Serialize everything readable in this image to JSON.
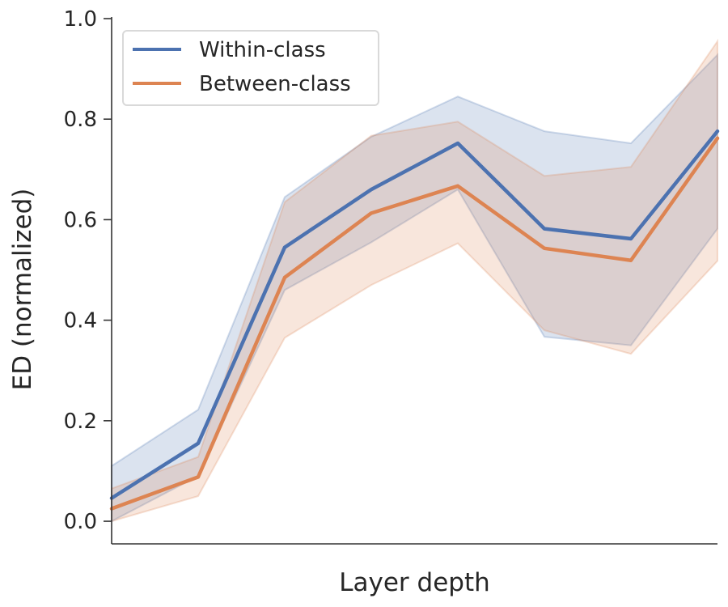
{
  "chart_data": {
    "type": "line",
    "xlabel": "Layer depth",
    "ylabel": "ED (normalized)",
    "x": [
      0,
      1,
      2,
      3,
      4,
      5,
      6,
      7
    ],
    "xlim": [
      0,
      7
    ],
    "ylim": [
      -0.045,
      1.0
    ],
    "yticks": [
      0.0,
      0.2,
      0.4,
      0.6,
      0.8,
      1.0
    ],
    "ytick_labels": [
      "0.0",
      "0.2",
      "0.4",
      "0.6",
      "0.8",
      "1.0"
    ],
    "grid": false,
    "legend_position": "top-left",
    "series": [
      {
        "name": "Within-class",
        "color": "#4c72b0",
        "values": [
          0.046,
          0.155,
          0.545,
          0.66,
          0.752,
          0.582,
          0.562,
          0.776
        ],
        "lower": [
          0.0,
          0.09,
          0.46,
          0.555,
          0.66,
          0.367,
          0.35,
          0.582
        ],
        "upper": [
          0.11,
          0.222,
          0.645,
          0.765,
          0.845,
          0.776,
          0.752,
          0.928
        ]
      },
      {
        "name": "Between-class",
        "color": "#dd8452",
        "values": [
          0.025,
          0.088,
          0.485,
          0.613,
          0.667,
          0.543,
          0.519,
          0.762
        ],
        "lower": [
          0.0,
          0.05,
          0.365,
          0.47,
          0.553,
          0.38,
          0.333,
          0.518
        ],
        "upper": [
          0.065,
          0.128,
          0.635,
          0.767,
          0.795,
          0.687,
          0.705,
          0.955
        ]
      }
    ]
  }
}
